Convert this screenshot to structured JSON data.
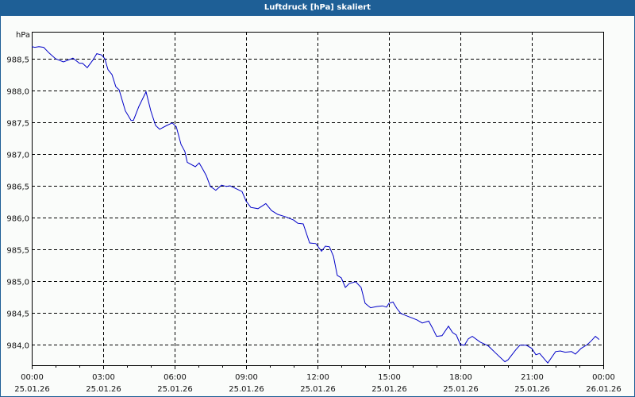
{
  "window": {
    "title": "Luftdruck [hPa] skaliert"
  },
  "colors": {
    "titlebar": "#1e5f96",
    "line": "#0000c8",
    "grid": "#000000",
    "background": "#fafcfa"
  },
  "chart_data": {
    "type": "line",
    "title": "Luftdruck [hPa] skaliert",
    "xlabel": "",
    "ylabel": "hPa",
    "ylim": [
      983.66,
      988.88
    ],
    "xlim_hours": [
      0,
      24
    ],
    "grid": true,
    "yticks": [
      "988,5",
      "988,0",
      "987,5",
      "987,0",
      "986,5",
      "986,0",
      "985,5",
      "985,0",
      "984,5",
      "984,0"
    ],
    "xticks": [
      {
        "time": "00:00",
        "date": "25.01.26"
      },
      {
        "time": "03:00",
        "date": "25.01.26"
      },
      {
        "time": "06:00",
        "date": "25.01.26"
      },
      {
        "time": "09:00",
        "date": "25.01.26"
      },
      {
        "time": "12:00",
        "date": "25.01.26"
      },
      {
        "time": "15:00",
        "date": "25.01.26"
      },
      {
        "time": "18:00",
        "date": "25.01.26"
      },
      {
        "time": "21:00",
        "date": "25.01.26"
      },
      {
        "time": "00:00",
        "date": "26.01.26"
      }
    ],
    "series": [
      {
        "name": "Luftdruck",
        "x_hours": [
          0.0,
          0.13,
          0.3,
          0.5,
          0.73,
          1.0,
          1.33,
          1.67,
          1.73,
          2.0,
          2.13,
          2.33,
          2.57,
          2.73,
          2.93,
          3.07,
          3.2,
          3.37,
          3.53,
          3.67,
          3.93,
          4.17,
          4.27,
          4.5,
          4.8,
          5.0,
          5.2,
          5.37,
          5.67,
          5.9,
          6.07,
          6.27,
          6.43,
          6.53,
          6.87,
          7.03,
          7.2,
          7.33,
          7.5,
          7.73,
          7.97,
          8.17,
          8.33,
          8.83,
          9.0,
          9.2,
          9.5,
          9.67,
          9.83,
          10.07,
          10.33,
          10.67,
          11.0,
          11.17,
          11.4,
          11.67,
          11.93,
          12.17,
          12.33,
          12.5,
          12.67,
          12.83,
          13.0,
          13.17,
          13.33,
          13.6,
          13.83,
          14.0,
          14.23,
          14.5,
          14.73,
          14.9,
          15.0,
          15.17,
          15.33,
          15.5,
          15.83,
          16.17,
          16.4,
          16.67,
          16.83,
          17.0,
          17.23,
          17.5,
          17.67,
          17.83,
          18.0,
          18.17,
          18.33,
          18.5,
          18.83,
          19.17,
          19.5,
          19.87,
          20.0,
          20.33,
          20.5,
          20.77,
          21.0,
          21.17,
          21.33,
          21.67,
          22.0,
          22.2,
          22.4,
          22.67,
          22.83,
          23.07,
          23.33,
          23.5,
          23.67,
          23.83
        ],
        "values": [
          988.69,
          988.68,
          988.69,
          988.68,
          988.59,
          988.5,
          988.45,
          988.5,
          988.51,
          988.43,
          988.43,
          988.36,
          988.48,
          988.58,
          988.56,
          988.5,
          988.33,
          988.25,
          988.06,
          988.01,
          987.68,
          987.53,
          987.53,
          987.75,
          987.98,
          987.68,
          987.45,
          987.39,
          987.45,
          987.49,
          987.43,
          987.15,
          987.04,
          986.87,
          986.8,
          986.86,
          986.75,
          986.66,
          986.49,
          986.43,
          986.51,
          986.49,
          986.5,
          986.41,
          986.26,
          986.16,
          986.14,
          986.18,
          986.22,
          986.11,
          986.05,
          986.01,
          985.96,
          985.91,
          985.9,
          985.6,
          985.59,
          985.47,
          985.55,
          985.54,
          985.39,
          985.09,
          985.05,
          984.9,
          984.96,
          984.99,
          984.9,
          984.65,
          984.58,
          984.6,
          984.61,
          984.59,
          984.65,
          984.67,
          984.57,
          984.49,
          984.44,
          984.39,
          984.34,
          984.37,
          984.26,
          984.13,
          984.14,
          984.29,
          984.19,
          984.15,
          984.0,
          983.99,
          984.09,
          984.13,
          984.04,
          983.98,
          983.86,
          983.73,
          983.76,
          983.92,
          983.99,
          983.99,
          983.94,
          983.84,
          983.86,
          983.71,
          983.89,
          983.9,
          983.88,
          983.89,
          983.85,
          983.94,
          984.0,
          984.06,
          984.13,
          984.08
        ]
      }
    ]
  }
}
